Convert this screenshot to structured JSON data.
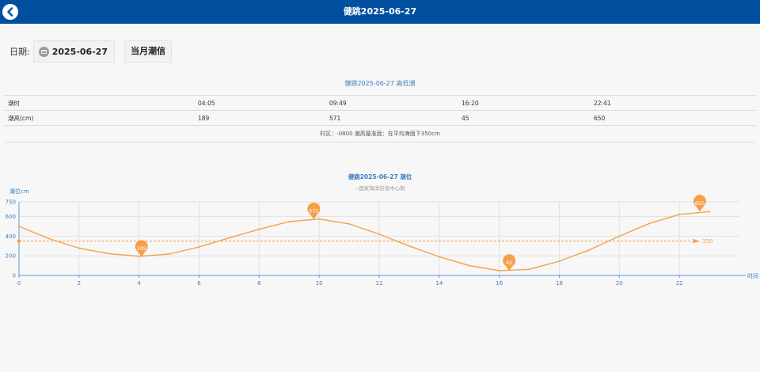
{
  "header": {
    "title": "健跳2025-06-27",
    "back_icon": "back-arrow-icon"
  },
  "date_picker": {
    "label": "日期:",
    "value": "2025-06-27",
    "icon": "calendar-icon",
    "month_button": "当月潮信"
  },
  "tide_table": {
    "title": "健跳2025-06-27 高低潮",
    "rows": [
      {
        "label": "潮时",
        "values": [
          "04:05",
          "09:49",
          "16:20",
          "22:41"
        ]
      },
      {
        "label": "潮高(cm)",
        "values": [
          "189",
          "571",
          "45",
          "650"
        ]
      }
    ],
    "note": "时区：-0800 潮高基准面：在平均海面下350cm"
  },
  "chart_data": {
    "type": "line",
    "title": "健跳2025-06-27 潮位",
    "subtitle": "--国家海洋信息中心制",
    "ylabel": "潮位cm",
    "xlabel": "时间",
    "xlim": [
      0,
      24
    ],
    "ylim": [
      0,
      750
    ],
    "xticks": [
      0,
      2,
      4,
      6,
      8,
      10,
      12,
      14,
      16,
      18,
      20,
      22
    ],
    "yticks": [
      0,
      200,
      400,
      600,
      750
    ],
    "series": [
      {
        "color": "#f5a04a",
        "points": [
          [
            0,
            500
          ],
          [
            1,
            375
          ],
          [
            2,
            278
          ],
          [
            3,
            222
          ],
          [
            4,
            195
          ],
          [
            5,
            218
          ],
          [
            6,
            290
          ],
          [
            7,
            382
          ],
          [
            8,
            470
          ],
          [
            9,
            548
          ],
          [
            10,
            575
          ],
          [
            11,
            525
          ],
          [
            12,
            420
          ],
          [
            13,
            300
          ],
          [
            14,
            190
          ],
          [
            15,
            100
          ],
          [
            16,
            48
          ],
          [
            17,
            62
          ],
          [
            18,
            145
          ],
          [
            19,
            260
          ],
          [
            20,
            400
          ],
          [
            21,
            530
          ],
          [
            22,
            622
          ],
          [
            23,
            650
          ]
        ]
      }
    ],
    "markers": [
      {
        "x": 4.08,
        "y": 189,
        "label": "189"
      },
      {
        "x": 9.82,
        "y": 571,
        "label": "571"
      },
      {
        "x": 16.33,
        "y": 45,
        "label": "45"
      },
      {
        "x": 22.68,
        "y": 650,
        "label": "650"
      }
    ],
    "reference_line": {
      "y": 350,
      "label": "350"
    },
    "grid": true,
    "legend": "none"
  }
}
